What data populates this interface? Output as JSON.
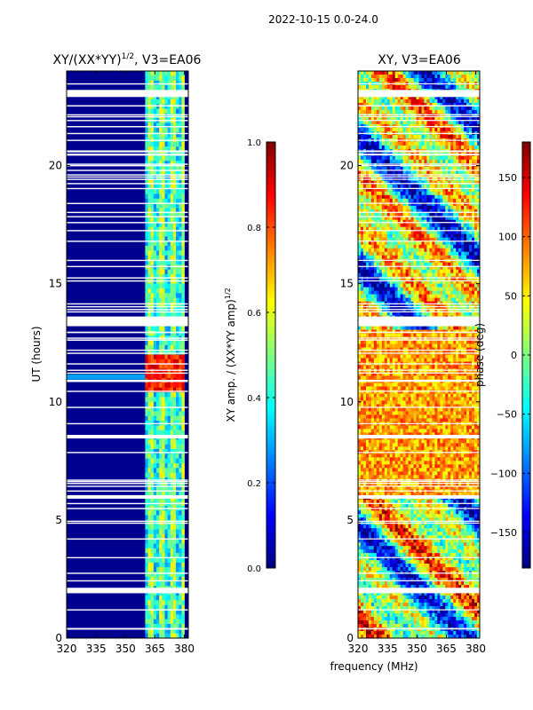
{
  "figure_title": "2022-10-15 0.0-24.0",
  "shared_xlabel": "frequency (MHz)",
  "colors": {
    "jet": [
      "#00007f",
      "#0000ff",
      "#007fff",
      "#00ffff",
      "#7fff7f",
      "#ffff00",
      "#ff7f00",
      "#ff0000",
      "#7f0000"
    ],
    "background_low": "#00008f",
    "flag": "#ffffff"
  },
  "chart_data": [
    {
      "type": "heatmap",
      "title": "XY/(XX*YY)",
      "title_exponent": "1/2",
      "title_suffix": ", V3=EA06",
      "xlabel": "",
      "ylabel": "UT (hours)",
      "xlim": [
        320,
        382
      ],
      "ylim": [
        0,
        24
      ],
      "xticks": [
        "320",
        "335",
        "350",
        "365",
        "380"
      ],
      "yticks": [
        "0",
        "5",
        "10",
        "15",
        "20"
      ],
      "xtick_values": [
        320,
        335,
        350,
        365,
        380
      ],
      "ytick_values": [
        0,
        5,
        10,
        15,
        20
      ],
      "colorbar": {
        "label": "XY amp. / (XX*YY amp)",
        "label_exponent": "1/2",
        "range": [
          0.0,
          1.0
        ],
        "ticks": [
          "0.0",
          "0.2",
          "0.4",
          "0.6",
          "0.8",
          "1.0"
        ],
        "tick_values": [
          0.0,
          0.2,
          0.4,
          0.6,
          0.8,
          1.0
        ]
      },
      "active_band_MHz": [
        360,
        380
      ],
      "bright_UT_range": [
        10.3,
        12.0
      ]
    },
    {
      "type": "heatmap",
      "title": "XY, V3=EA06",
      "xlabel": "frequency (MHz)",
      "ylabel": "",
      "xlim": [
        320,
        382
      ],
      "ylim": [
        0,
        24
      ],
      "xticks": [
        "320",
        "335",
        "350",
        "365",
        "380"
      ],
      "yticks": [
        "0",
        "5",
        "10",
        "15",
        "20"
      ],
      "xtick_values": [
        320,
        335,
        350,
        365,
        380
      ],
      "ytick_values": [
        0,
        5,
        10,
        15,
        20
      ],
      "colorbar": {
        "label": "phase (deg)",
        "range": [
          -180,
          180
        ],
        "ticks": [
          "−150",
          "−100",
          "−50",
          "0",
          "50",
          "100",
          "150"
        ],
        "tick_values": [
          -150,
          -100,
          -50,
          0,
          50,
          100,
          150
        ]
      },
      "flagged_UT_bands": [
        [
          1.9,
          2.1
        ],
        [
          5.9,
          6.05
        ],
        [
          8.45,
          8.6
        ],
        [
          13.2,
          13.6
        ],
        [
          22.9,
          23.2
        ]
      ]
    }
  ]
}
